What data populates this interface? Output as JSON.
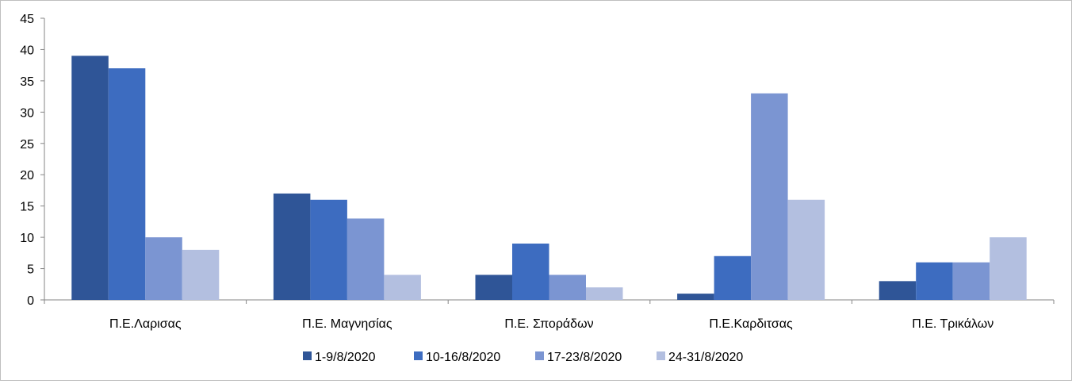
{
  "chart_data": {
    "type": "bar",
    "title": "",
    "xlabel": "",
    "ylabel": "",
    "ylim": [
      0,
      45
    ],
    "yticks": [
      0,
      5,
      10,
      15,
      20,
      25,
      30,
      35,
      40,
      45
    ],
    "grid": false,
    "legend_position": "bottom",
    "categories": [
      "Π.Ε.Λαρισας",
      "Π.Ε. Μαγνησίας",
      "Π.Ε. Σποράδων",
      "Π.Ε.Καρδιτσας",
      "Π.Ε. Τρικάλων"
    ],
    "series": [
      {
        "name": "1-9/8/2020",
        "color": "#2f5597",
        "values": [
          39,
          17,
          4,
          1,
          3
        ]
      },
      {
        "name": "10-16/8/2020",
        "color": "#3d6cc0",
        "values": [
          37,
          16,
          9,
          7,
          6
        ]
      },
      {
        "name": "17-23/8/2020",
        "color": "#7b95d2",
        "values": [
          10,
          13,
          4,
          33,
          6
        ]
      },
      {
        "name": "24-31/8/2020",
        "color": "#b3bfe0",
        "values": [
          8,
          4,
          2,
          16,
          10
        ]
      }
    ]
  }
}
